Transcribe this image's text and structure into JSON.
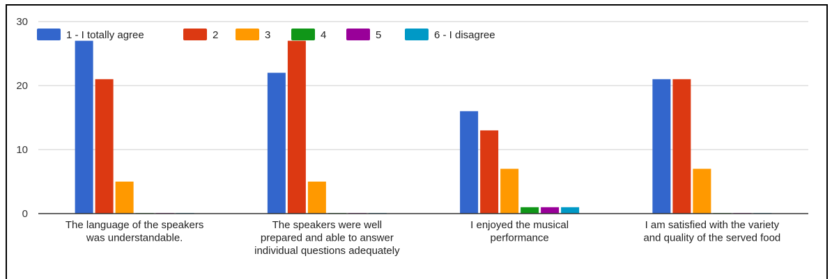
{
  "chart_data": {
    "type": "bar",
    "title": "",
    "xlabel": "",
    "ylabel": "",
    "ylim": [
      0,
      30
    ],
    "yticks": [
      0,
      10,
      20,
      30
    ],
    "grid": true,
    "legend_position": "top",
    "categories": [
      [
        "The language of the speakers",
        "was understandable."
      ],
      [
        "The speakers were well",
        "prepared and able to answer",
        "individual questions adequately"
      ],
      [
        "I enjoyed the musical",
        "performance"
      ],
      [
        "I am satisfied with the variety",
        "and quality of the served food"
      ]
    ],
    "series": [
      {
        "name": "1 - I totally agree",
        "color": "#3366cc",
        "values": [
          27,
          22,
          16,
          21
        ]
      },
      {
        "name": "2",
        "color": "#dc3912",
        "values": [
          21,
          27,
          13,
          21
        ]
      },
      {
        "name": "3",
        "color": "#ff9900",
        "values": [
          5,
          5,
          7,
          7
        ]
      },
      {
        "name": "4",
        "color": "#109618",
        "values": [
          0,
          0,
          1,
          0
        ]
      },
      {
        "name": "5",
        "color": "#990099",
        "values": [
          0,
          0,
          1,
          0
        ]
      },
      {
        "name": "6 - I disagree",
        "color": "#0099c6",
        "values": [
          0,
          0,
          1,
          0
        ]
      }
    ]
  }
}
